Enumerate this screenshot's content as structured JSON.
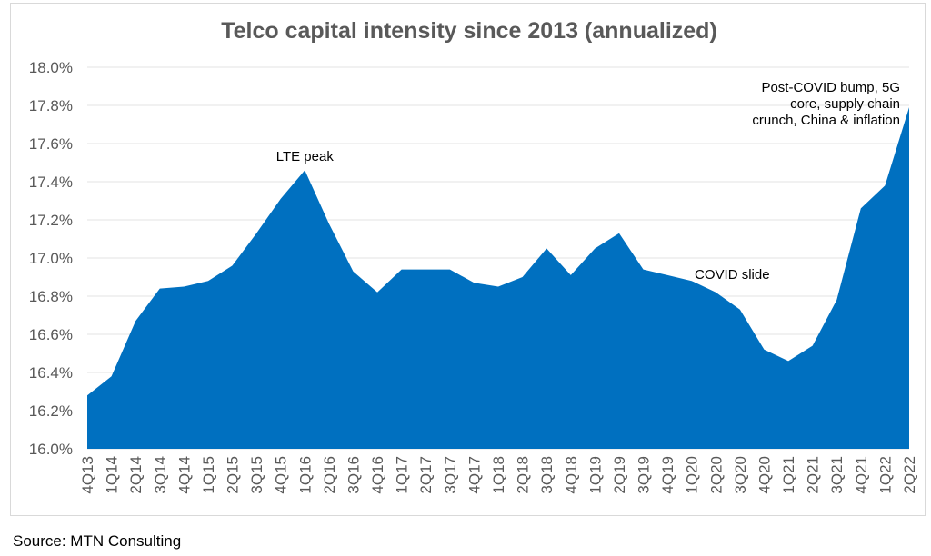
{
  "chart_data": {
    "type": "area",
    "title": "Telco capital intensity since 2013 (annualized)",
    "xlabel": "",
    "ylabel": "",
    "ylim": [
      16.0,
      18.0
    ],
    "y_ticks": [
      "16.0%",
      "16.2%",
      "16.4%",
      "16.6%",
      "16.8%",
      "17.0%",
      "17.2%",
      "17.4%",
      "17.6%",
      "17.8%",
      "18.0%"
    ],
    "grid": true,
    "color": "#0070C0",
    "categories": [
      "4Q13",
      "1Q14",
      "2Q14",
      "3Q14",
      "4Q14",
      "1Q15",
      "2Q15",
      "3Q15",
      "4Q15",
      "1Q16",
      "2Q16",
      "3Q16",
      "4Q16",
      "1Q17",
      "2Q17",
      "3Q17",
      "4Q17",
      "1Q18",
      "2Q18",
      "3Q18",
      "4Q18",
      "1Q19",
      "2Q19",
      "3Q19",
      "4Q19",
      "1Q20",
      "2Q20",
      "3Q20",
      "4Q20",
      "1Q21",
      "2Q21",
      "3Q21",
      "4Q21",
      "1Q22",
      "2Q22"
    ],
    "values": [
      16.28,
      16.38,
      16.67,
      16.84,
      16.85,
      16.88,
      16.96,
      17.13,
      17.31,
      17.46,
      17.18,
      16.93,
      16.82,
      16.94,
      16.94,
      16.94,
      16.87,
      16.85,
      16.9,
      17.05,
      16.91,
      17.05,
      17.13,
      16.94,
      16.91,
      16.88,
      16.82,
      16.73,
      16.52,
      16.46,
      16.54,
      16.78,
      17.26,
      17.38,
      17.79
    ],
    "annotations": [
      {
        "category": "1Q16",
        "text": "LTE peak"
      },
      {
        "category": "2Q20",
        "text": "COVID slide"
      },
      {
        "category": "2Q22",
        "lines": [
          "Post-COVID bump, 5G",
          "core, supply chain",
          "crunch, China & inflation"
        ]
      }
    ]
  },
  "footer": {
    "source": "Source: MTN Consulting"
  }
}
